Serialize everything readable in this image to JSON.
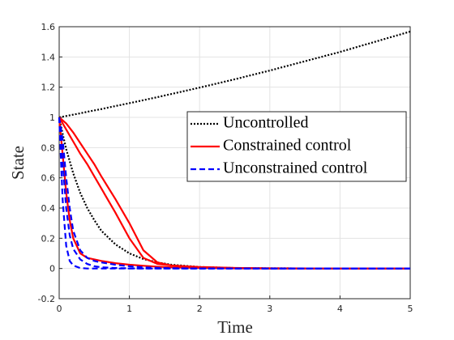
{
  "chart_data": {
    "type": "line",
    "xlabel": "Time",
    "ylabel": "State",
    "x": [
      0,
      0.05,
      0.1,
      0.15,
      0.2,
      0.3,
      0.4,
      0.5,
      0.6,
      0.8,
      1,
      1.2,
      1.4,
      1.6,
      2,
      2.5,
      3,
      4,
      5
    ],
    "series": [
      {
        "name": "Uncontrolled",
        "color": "#000000",
        "dash": "dot",
        "values": [
          1,
          1.0045,
          1.009,
          1.0136,
          1.018,
          1.027,
          1.037,
          1.046,
          1.055,
          1.075,
          1.094,
          1.114,
          1.134,
          1.155,
          1.197,
          1.252,
          1.31,
          1.433,
          1.568
        ]
      },
      {
        "name": "Uncontrolled",
        "color": "#000000",
        "dash": "dot",
        "values": [
          1,
          0.89,
          0.79,
          0.71,
          0.63,
          0.5,
          0.4,
          0.32,
          0.25,
          0.16,
          0.1,
          0.063,
          0.04,
          0.025,
          0.01,
          0.003,
          0.001,
          0,
          0
        ]
      },
      {
        "name": "Constrained control",
        "color": "#ff0000",
        "dash": "solid",
        "values": [
          1,
          0.96,
          0.92,
          0.88,
          0.84,
          0.76,
          0.69,
          0.61,
          0.53,
          0.37,
          0.2,
          0.07,
          0.03,
          0.02,
          0.008,
          0.003,
          0.001,
          0,
          0
        ]
      },
      {
        "name": "Constrained control",
        "color": "#ff0000",
        "dash": "solid",
        "values": [
          1,
          0.98,
          0.96,
          0.93,
          0.9,
          0.83,
          0.76,
          0.69,
          0.61,
          0.46,
          0.3,
          0.12,
          0.04,
          0.02,
          0.01,
          0.004,
          0.001,
          0,
          0
        ]
      },
      {
        "name": "Constrained control",
        "color": "#ff0000",
        "dash": "solid",
        "values": [
          1,
          0.75,
          0.5,
          0.32,
          0.2,
          0.1,
          0.07,
          0.06,
          0.05,
          0.035,
          0.025,
          0.018,
          0.012,
          0.008,
          0.004,
          0.001,
          0,
          0,
          0
        ]
      },
      {
        "name": "Unconstrained control",
        "color": "#0000ff",
        "dash": "dash",
        "values": [
          1,
          0.45,
          0.15,
          0.05,
          0.02,
          0.003,
          0,
          0,
          0,
          0,
          0,
          0,
          0,
          0,
          0,
          0,
          0,
          0,
          0
        ]
      },
      {
        "name": "Unconstrained control",
        "color": "#0000ff",
        "dash": "dash",
        "values": [
          1,
          0.7,
          0.4,
          0.22,
          0.13,
          0.06,
          0.03,
          0.015,
          0.008,
          0.003,
          0.001,
          0,
          0,
          0,
          0,
          0,
          0,
          0,
          0
        ]
      },
      {
        "name": "Unconstrained control",
        "color": "#0000ff",
        "dash": "dash",
        "values": [
          1,
          0.85,
          0.6,
          0.4,
          0.25,
          0.12,
          0.07,
          0.05,
          0.04,
          0.025,
          0.015,
          0.008,
          0.004,
          0.002,
          0,
          0,
          0,
          0,
          0
        ]
      }
    ],
    "xlim": [
      0,
      5
    ],
    "xticks": [
      0,
      1,
      2,
      3,
      4,
      5
    ],
    "ylim": [
      -0.2,
      1.6
    ],
    "yticks": [
      -0.2,
      0,
      0.2,
      0.4,
      0.6,
      0.8,
      1,
      1.2,
      1.4,
      1.6
    ],
    "grid": true,
    "legend": "northeast"
  }
}
